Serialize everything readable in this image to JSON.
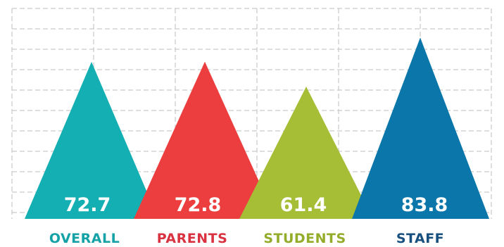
{
  "chart_data": {
    "type": "bar",
    "title": "",
    "xlabel": "",
    "ylabel": "",
    "categories": [
      "OVERALL",
      "PARENTS",
      "STUDENTS",
      "STAFF"
    ],
    "values": [
      72.7,
      72.8,
      61.4,
      83.8
    ],
    "value_labels": [
      "72.7",
      "72.8",
      "61.4",
      "83.8"
    ],
    "colors": [
      "#14AFB3",
      "#EC3E3E",
      "#A5BE36",
      "#0A76AA"
    ],
    "label_colors": [
      "#14A2A7",
      "#D93240",
      "#93AC2A",
      "#17507E"
    ],
    "ylim": [
      0,
      100
    ],
    "grid": true,
    "bar_shape": "triangle"
  }
}
